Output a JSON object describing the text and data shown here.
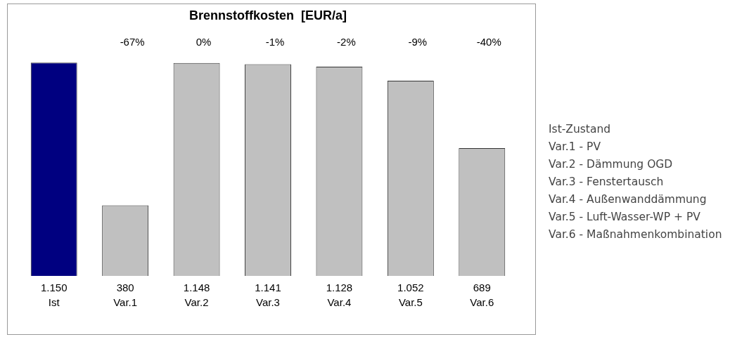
{
  "chart_data": {
    "type": "bar",
    "title": "Brennstoffkosten  [EUR/a]",
    "categories": [
      "Ist",
      "Var.1",
      "Var.2",
      "Var.3",
      "Var.4",
      "Var.5",
      "Var.6"
    ],
    "values": [
      1150,
      380,
      1148,
      1141,
      1128,
      1052,
      689
    ],
    "colors": [
      "#000080",
      "#c0c0c0",
      "#c0c0c0",
      "#c0c0c0",
      "#c0c0c0",
      "#c0c0c0",
      "#c0c0c0"
    ],
    "value_labels": [
      "1.150",
      "380",
      "1.148",
      "1.141",
      "1.128",
      "1.052",
      "689"
    ],
    "grid": false,
    "legend": false,
    "annotations": [
      "-67%",
      "0%",
      "-1%",
      "-2%",
      "-9%",
      "-40%",
      "Ist-Zustand",
      "Var.1 - PV",
      "Var.2 - Dämmung OGD",
      "Var.3 - Fenstertausch",
      "Var.4 - Außenwanddämmung",
      "Var.5 - Luft-Wasser-WP + PV",
      "Var.6 - Maßnahmenkombination"
    ]
  }
}
